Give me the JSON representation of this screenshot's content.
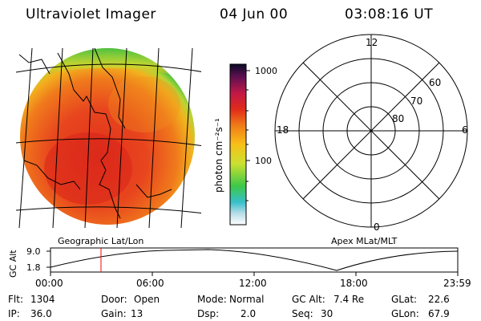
{
  "header": {
    "instrument": "Ultraviolet Imager",
    "date": "04 Jun 00",
    "time": "03:08:16 UT"
  },
  "colors": {
    "plot_background": "#ffffff",
    "lines": "#000000",
    "time_marker": "#ff0000",
    "image_disk_dominant": "#e84a1e",
    "image_disk_edge": "#4ec040"
  },
  "colorbar": {
    "label": "photon cm⁻²s⁻¹",
    "ticks": [
      "1000",
      "100"
    ],
    "scale": "log"
  },
  "image_panel": {
    "caption": "Geographic Lat/Lon"
  },
  "polar_panel": {
    "caption": "Apex MLat/MLT",
    "mlt_labels": {
      "top": "12",
      "right": "6",
      "bottom": "0",
      "left": "18"
    },
    "mlat_labels": [
      "60",
      "70",
      "80"
    ]
  },
  "altitude_plot": {
    "ylabel": "GC Alt",
    "yticks": [
      "9.0",
      "1.8"
    ],
    "xticks": [
      "00:00",
      "06:00",
      "12:00",
      "18:00",
      "23:59"
    ],
    "marker_time": "03:08"
  },
  "status": {
    "flt": {
      "label": "Flt:",
      "value": "1304"
    },
    "ip": {
      "label": "IP:",
      "value": "36.0"
    },
    "door": {
      "label": "Door:",
      "value": "Open"
    },
    "gain": {
      "label": "Gain:",
      "value": "13"
    },
    "mode": {
      "label": "Mode:",
      "value": "Normal"
    },
    "dsp": {
      "label": "Dsp:",
      "value": "2.0"
    },
    "gc_alt": {
      "label": "GC Alt:",
      "value": "7.4 Re"
    },
    "seq": {
      "label": "Seq:",
      "value": "30"
    },
    "glat": {
      "label": "GLat:",
      "value": "22.6"
    },
    "glon": {
      "label": "GLon:",
      "value": "67.9"
    }
  }
}
